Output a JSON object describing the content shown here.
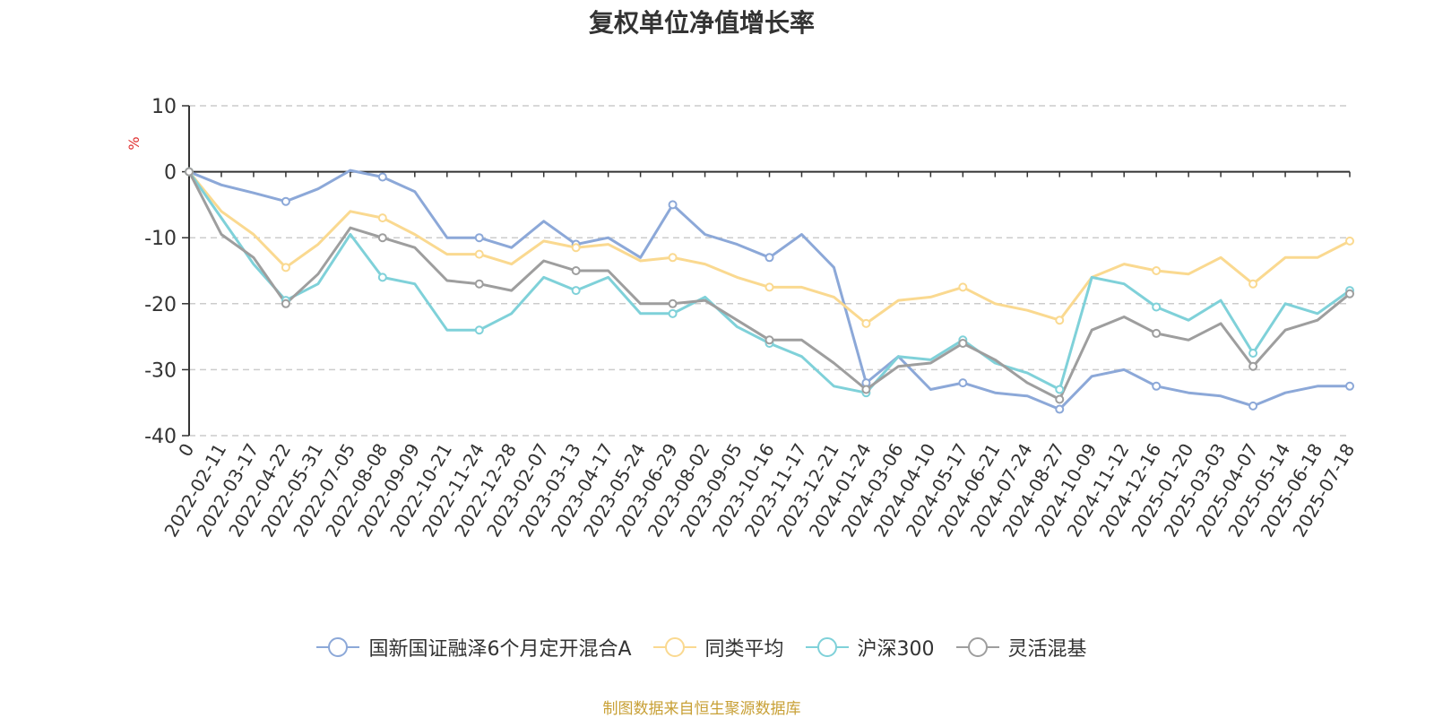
{
  "chart_data": {
    "type": "line",
    "title": "复权单位净值增长率",
    "ylabel": "%",
    "xlabel": "",
    "ylim": [
      -40,
      10
    ],
    "yticks": [
      10,
      0,
      -10,
      -20,
      -30,
      -40
    ],
    "grid": true,
    "legend_position": "bottom",
    "x": [
      "0",
      "2022-02-11",
      "2022-03-17",
      "2022-04-22",
      "2022-05-31",
      "2022-07-05",
      "2022-08-08",
      "2022-09-09",
      "2022-10-21",
      "2022-11-24",
      "2022-12-28",
      "2023-02-07",
      "2023-03-13",
      "2023-04-17",
      "2023-05-24",
      "2023-06-29",
      "2023-08-02",
      "2023-09-05",
      "2023-10-16",
      "2023-11-17",
      "2023-12-21",
      "2024-01-24",
      "2024-03-06",
      "2024-04-10",
      "2024-05-17",
      "2024-06-21",
      "2024-07-24",
      "2024-08-27",
      "2024-10-09",
      "2024-11-12",
      "2024-12-16",
      "2025-01-20",
      "2025-03-03",
      "2025-04-07",
      "2025-05-14",
      "2025-06-18",
      "2025-07-18"
    ],
    "series": [
      {
        "name": "国新国证融泽6个月定开混合A",
        "color": "#8ca8d8",
        "values": [
          0,
          -2,
          -3.2,
          -4.5,
          -2.6,
          0.2,
          -0.8,
          -3,
          -10,
          -10,
          -11.5,
          -7.5,
          -11,
          -10,
          -13,
          -5,
          -9.5,
          -11,
          -13,
          -9.5,
          -14.5,
          -32,
          -28,
          -33,
          -32,
          -33.5,
          -34,
          -36,
          -31,
          -30,
          -32.5,
          -33.5,
          -34,
          -35.5,
          -33.5,
          -32.5,
          -32.5
        ]
      },
      {
        "name": "同类平均",
        "color": "#fad990",
        "values": [
          0,
          -6,
          -9.5,
          -14.5,
          -11,
          -6,
          -7,
          -9.5,
          -12.5,
          -12.5,
          -14,
          -10.5,
          -11.5,
          -11,
          -13.5,
          -13,
          -14,
          -16,
          -17.5,
          -17.5,
          -19,
          -23,
          -19.5,
          -19,
          -17.5,
          -20,
          -21,
          -22.5,
          -16,
          -14,
          -15,
          -15.5,
          -13,
          -17,
          -13,
          -13,
          -10.5
        ]
      },
      {
        "name": "沪深300",
        "color": "#7fd1d9",
        "values": [
          0,
          -7,
          -14,
          -19.5,
          -17,
          -9.5,
          -16,
          -17,
          -24,
          -24,
          -21.5,
          -16,
          -18,
          -16,
          -21.5,
          -21.5,
          -19,
          -23.5,
          -26,
          -28,
          -32.5,
          -33.5,
          -28,
          -28.5,
          -25.5,
          -29,
          -30.5,
          -33,
          -16,
          -17,
          -20.5,
          -22.5,
          -19.5,
          -27.5,
          -20,
          -21.5,
          -18
        ]
      },
      {
        "name": "灵活混基",
        "color": "#9e9e9e",
        "values": [
          0,
          -9.5,
          -13,
          -20,
          -15.5,
          -8.5,
          -10,
          -11.5,
          -16.5,
          -17,
          -18,
          -13.5,
          -15,
          -15,
          -20,
          -20,
          -19.5,
          -22.5,
          -25.5,
          -25.5,
          -29,
          -33,
          -29.5,
          -29,
          -26,
          -28.5,
          -32,
          -34.5,
          -24,
          -22,
          -24.5,
          -25.5,
          -23,
          -29.5,
          -24,
          -22.5,
          -18.5
        ]
      }
    ]
  },
  "source_note": "制图数据来自恒生聚源数据库"
}
